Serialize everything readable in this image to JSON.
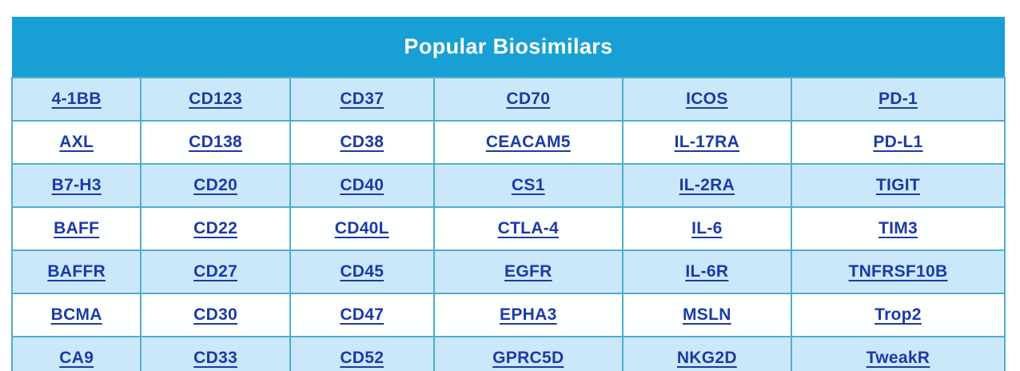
{
  "table": {
    "title": "Popular Biosimilars",
    "column_count": 6,
    "column_widths_pct": [
      13.0,
      15.0,
      14.5,
      19.0,
      17.0,
      21.5
    ],
    "rows": [
      [
        "4-1BB",
        "CD123",
        "CD37",
        "CD70",
        "ICOS",
        "PD-1"
      ],
      [
        "AXL",
        "CD138",
        "CD38",
        "CEACAM5",
        "IL-17RA",
        "PD-L1"
      ],
      [
        "B7-H3",
        "CD20",
        "CD40",
        "CS1",
        "IL-2RA",
        "TIGIT"
      ],
      [
        "BAFF",
        "CD22",
        "CD40L",
        "CTLA-4",
        "IL-6",
        "TIM3"
      ],
      [
        "BAFFR",
        "CD27",
        "CD45",
        "EGFR",
        "IL-6R",
        "TNFRSF10B"
      ],
      [
        "BCMA",
        "CD30",
        "CD47",
        "EPHA3",
        "MSLN",
        "Trop2"
      ],
      [
        "CA9",
        "CD33",
        "CD52",
        "GPRC5D",
        "NKG2D",
        "TweakR"
      ]
    ]
  },
  "colors": {
    "header_bg": "#18a0d4",
    "header_text": "#ffffff",
    "row_light_bg": "#cbe8fa",
    "row_white_bg": "#feffff",
    "cell_border": "#4fadcf",
    "link_text": "#1c3aa6"
  }
}
